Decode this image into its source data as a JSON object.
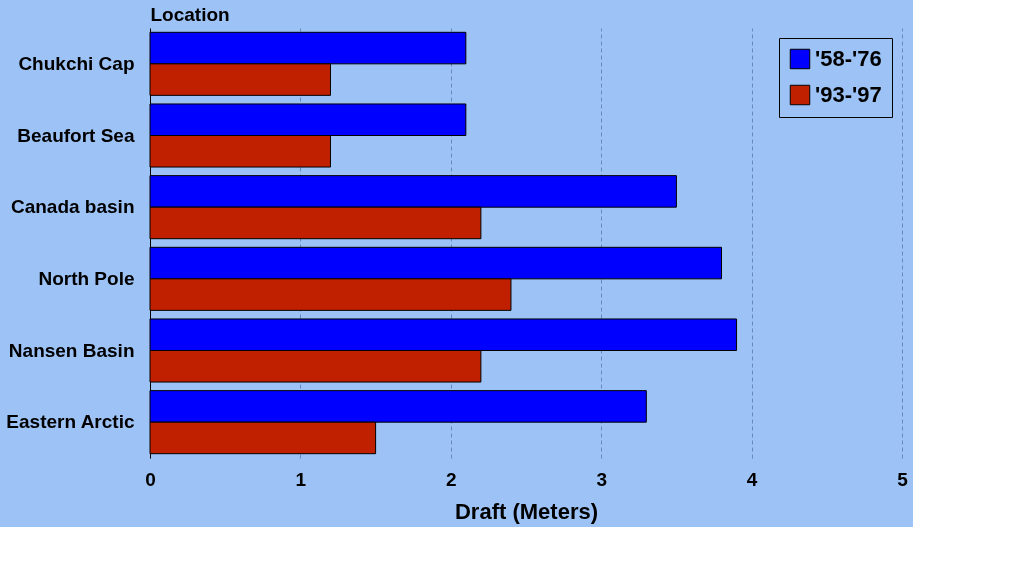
{
  "chart_data": {
    "type": "bar",
    "orientation": "horizontal",
    "xlabel": "Draft (Meters)",
    "ylabel": "Location",
    "categories": [
      "Chukchi Cap",
      "Beaufort Sea",
      "Canada basin",
      "North Pole",
      "Nansen Basin",
      "Eastern Arctic"
    ],
    "series": [
      {
        "name": "'58-'76",
        "color": "#0000ff",
        "values": [
          2.1,
          2.1,
          3.5,
          3.8,
          3.9,
          3.3
        ]
      },
      {
        "name": "'93-'97",
        "color": "#c02000",
        "values": [
          1.2,
          1.2,
          2.2,
          2.4,
          2.2,
          1.5
        ]
      }
    ],
    "xlim": [
      0,
      5
    ],
    "xticks": [
      0,
      1,
      2,
      3,
      4,
      5
    ],
    "grid": "x",
    "line_style": "dashed",
    "legend": "top right"
  }
}
